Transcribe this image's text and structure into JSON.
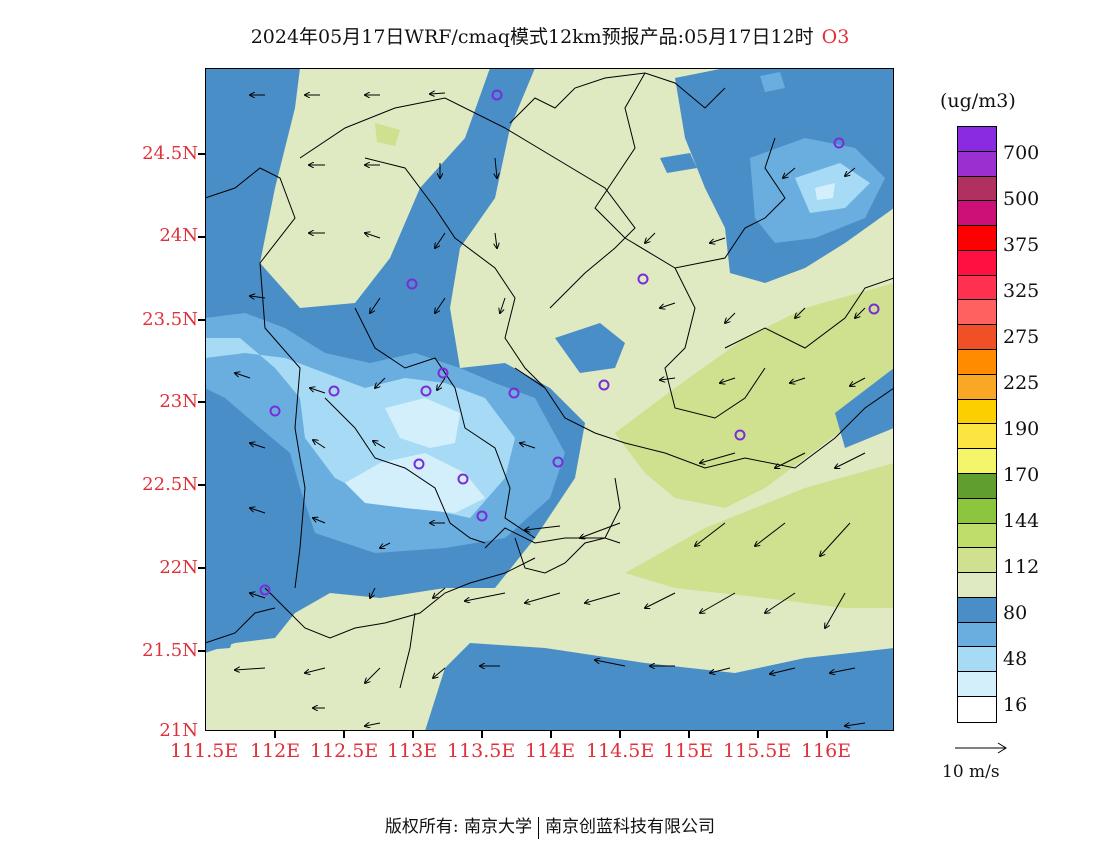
{
  "title": "2024年05月17日WRF/cmaq模式12km预报产品:05月17日12时",
  "species": "O3",
  "unit": "(ug/m3)",
  "y_labels": [
    "24.5N",
    "24N",
    "23.5N",
    "23N",
    "22.5N",
    "22N",
    "21.5N",
    "21N"
  ],
  "x_labels": [
    "111.5E",
    "112E",
    "112.5E",
    "113E",
    "113.5E",
    "114E",
    "114.5E",
    "115E",
    "115.5E",
    "116E"
  ],
  "colorbar": {
    "colors": [
      "#8a2be2",
      "#9b30d0",
      "#b03060",
      "#cc1077",
      "#ff0000",
      "#ff1040",
      "#ff3050",
      "#ff6060",
      "#f05028",
      "#ff8c00",
      "#f9a825",
      "#fcd000",
      "#fce540",
      "#f5f56a",
      "#5f9e2f",
      "#8cc63f",
      "#bedd6b",
      "#cfe08f",
      "#dfe9c2",
      "#4a8ec8",
      "#6aaee0",
      "#a7dbf5",
      "#d4effc",
      "#ffffff"
    ],
    "labels": [
      "700",
      "500",
      "375",
      "325",
      "275",
      "225",
      "190",
      "170",
      "144",
      "112",
      "80",
      "48",
      "16"
    ]
  },
  "wind_reference": "10 m/s",
  "footer": {
    "left": "版权所有: 南京大学",
    "right": "南京创蓝科技有限公司"
  }
}
